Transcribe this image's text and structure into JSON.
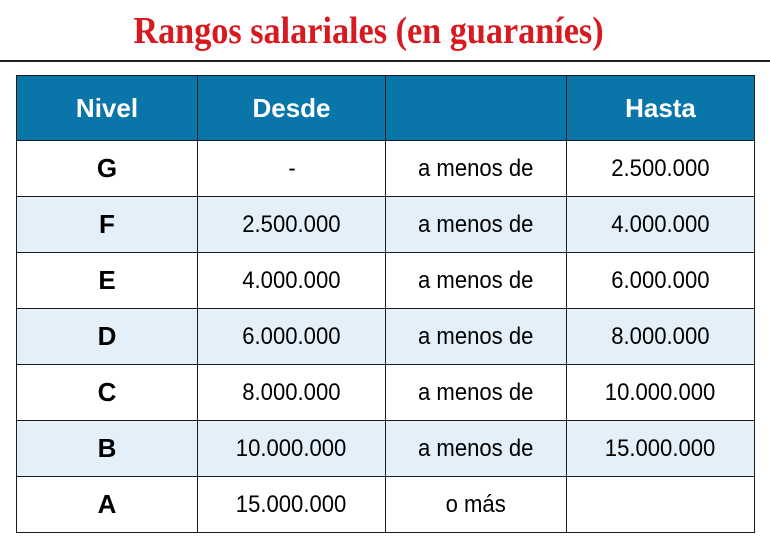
{
  "title": "Rangos salariales (en guaraníes)",
  "colors": {
    "title": "#d71920",
    "header_bg": "#0a75a8",
    "header_text": "#ffffff",
    "row_alt_bg": "#e3f0fa",
    "grid": "#1c1c1c"
  },
  "chart_data": {
    "type": "table",
    "columns": [
      "Nivel",
      "Desde",
      "",
      "Hasta"
    ],
    "rows": [
      [
        "G",
        "-",
        "a menos de",
        "2.500.000"
      ],
      [
        "F",
        "2.500.000",
        "a menos de",
        "4.000.000"
      ],
      [
        "E",
        "4.000.000",
        "a menos de",
        "6.000.000"
      ],
      [
        "D",
        "6.000.000",
        "a menos de",
        "8.000.000"
      ],
      [
        "C",
        "8.000.000",
        "a menos de",
        "10.000.000"
      ],
      [
        "B",
        "10.000.000",
        "a menos de",
        "15.000.000"
      ],
      [
        "A",
        "15.000.000",
        "o más",
        ""
      ]
    ]
  }
}
